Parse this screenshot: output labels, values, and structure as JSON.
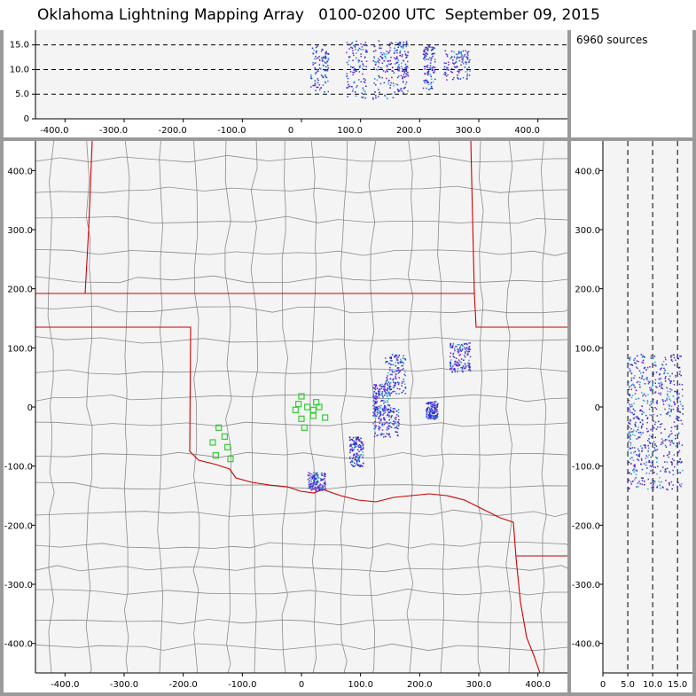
{
  "title": {
    "text": "Oklahoma Lightning Mapping Array   0100-0200 UTC  September 09, 2015"
  },
  "info": {
    "sources_text": "6960 sources"
  },
  "colors": {
    "state_border": "#cc0000",
    "county_line": "#8a8a8a",
    "station": "#33cc33",
    "plot_bg": "#f4f4f4",
    "frame": "#9a9a9a"
  },
  "chart_data": [
    {
      "type": "scatter",
      "name_hint": "altitude-vs-east-west",
      "x_ticks": [
        "-400.0",
        "-300.0",
        "-200.0",
        "-100.0",
        "0",
        "100.0",
        "200.0",
        "300.0",
        "400.0"
      ],
      "y_ticks": [
        "0",
        "5.0",
        "10.0",
        "15.0"
      ],
      "xlim": [
        -450,
        450
      ],
      "ylim": [
        0,
        18
      ],
      "dashed_levels": [
        5,
        10,
        15
      ],
      "clusters": [
        {
          "x": [
            15,
            45
          ],
          "y": [
            5,
            15
          ]
        },
        {
          "x": [
            75,
            110
          ],
          "y": [
            4,
            16
          ]
        },
        {
          "x": [
            120,
            160
          ],
          "y": [
            4,
            16
          ]
        },
        {
          "x": [
            160,
            180
          ],
          "y": [
            5,
            16
          ]
        },
        {
          "x": [
            205,
            225
          ],
          "y": [
            6,
            15
          ]
        },
        {
          "x": [
            240,
            285
          ],
          "y": [
            8,
            14
          ]
        }
      ]
    },
    {
      "type": "scatter",
      "name_hint": "plan-view-map",
      "x_ticks": [
        "-400.0",
        "-300.0",
        "-200.0",
        "-100.0",
        "0",
        "100.0",
        "200.0",
        "300.0",
        "400.0"
      ],
      "y_ticks": [
        "400.0",
        "300.0",
        "200.0",
        "100.0",
        "0",
        "-100.0",
        "-200.0",
        "-300.0",
        "-400.0"
      ],
      "xlim": [
        -450,
        450
      ],
      "ylim": [
        -450,
        450
      ],
      "stations": [
        [
          -140,
          -35
        ],
        [
          -130,
          -50
        ],
        [
          -150,
          -60
        ],
        [
          -125,
          -68
        ],
        [
          -145,
          -82
        ],
        [
          -120,
          -88
        ],
        [
          0,
          18
        ],
        [
          -5,
          5
        ],
        [
          10,
          0
        ],
        [
          -10,
          -5
        ],
        [
          25,
          8
        ],
        [
          20,
          -5
        ],
        [
          40,
          -18
        ],
        [
          0,
          -20
        ],
        [
          20,
          -15
        ],
        [
          5,
          -35
        ],
        [
          30,
          0
        ]
      ],
      "clusters": [
        {
          "x": [
            140,
            175
          ],
          "y": [
            20,
            90
          ]
        },
        {
          "x": [
            120,
            150
          ],
          "y": [
            -10,
            40
          ]
        },
        {
          "x": [
            210,
            230
          ],
          "y": [
            -20,
            10
          ]
        },
        {
          "x": [
            120,
            165
          ],
          "y": [
            -50,
            0
          ]
        },
        {
          "x": [
            80,
            105
          ],
          "y": [
            -100,
            -50
          ]
        },
        {
          "x": [
            10,
            40
          ],
          "y": [
            -140,
            -110
          ]
        },
        {
          "x": [
            250,
            285
          ],
          "y": [
            60,
            110
          ]
        }
      ]
    },
    {
      "type": "scatter",
      "name_hint": "north-south-vs-altitude",
      "x_ticks": [
        "0",
        "5.0",
        "10.0",
        "15.0"
      ],
      "y_ticks": [
        "400.0",
        "300.0",
        "200.0",
        "100.0",
        "0",
        "-100.0",
        "-200.0",
        "-300.0",
        "-400.0"
      ],
      "xlim": [
        0,
        18
      ],
      "ylim": [
        -450,
        450
      ],
      "dashed_levels": [
        5,
        10,
        15
      ],
      "clusters": [
        {
          "x": [
            5,
            16
          ],
          "y": [
            -140,
            90
          ]
        }
      ]
    }
  ]
}
